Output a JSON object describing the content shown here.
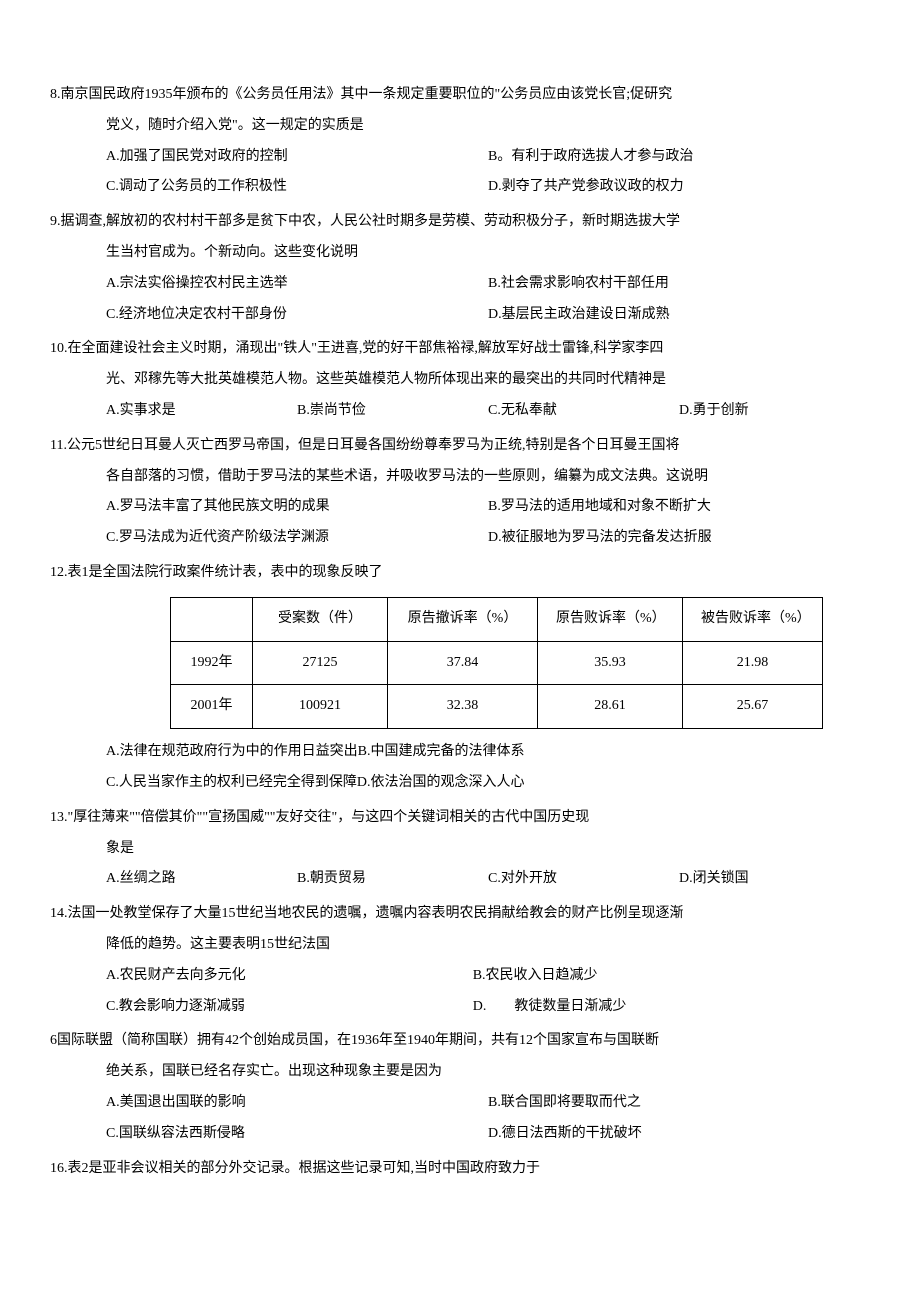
{
  "questions": [
    {
      "num": "8.",
      "text": "南京国民政府1935年颁布的《公务员任用法》其中一条规定重要职位的\"公务员应由该党长官;促研究",
      "continue": "党义，随时介绍入党\"。这一规定的实质是",
      "layout": "2col",
      "opts": {
        "A": "A.加强了国民党对政府的控制",
        "B": "B。有利于政府选拔人才参与政治",
        "C": "C.调动了公务员的工作积极性",
        "D": "D.剥夺了共产党参政议政的权力"
      }
    },
    {
      "num": "9.",
      "text": "据调查,解放初的农村村干部多是贫下中农，人民公社时期多是劳模、劳动积极分子，新时期选拔大学",
      "continue": "生当村官成为。个新动向。这些变化说明",
      "layout": "2col",
      "opts": {
        "A": "A.宗法实俗操控农村民主选举",
        "B": "B.社会需求影响农村干部任用",
        "C": "C.经济地位决定农村干部身份",
        "D": "D.基层民主政治建设日渐成熟"
      }
    },
    {
      "num": "10.",
      "text": "在全面建设社会主义时期，涌现出\"铁人\"王进喜,党的好干部焦裕禄,解放军好战士雷锋,科学家李四",
      "continue": "光、邓稼先等大批英雄模范人物。这些英雄模范人物所体现出来的最突出的共同时代精神是",
      "layout": "4col",
      "opts": {
        "A": "A.实事求是",
        "B": "B.崇尚节俭",
        "C": "C.无私奉献",
        "D": "D.勇于创新"
      }
    },
    {
      "num": "11.",
      "text": "公元5世纪日耳曼人灭亡西罗马帝国，但是日耳曼各国纷纷尊奉罗马为正统,特别是各个日耳曼王国将",
      "continue": "各自部落的习惯，借助于罗马法的某些术语，并吸收罗马法的一些原则，编纂为成文法典。这说明",
      "layout": "2col",
      "opts": {
        "A": "A.罗马法丰富了其他民族文明的成果",
        "B": "B.罗马法的适用地域和对象不断扩大",
        "C": "C.罗马法成为近代资产阶级法学渊源",
        "D": "D.被征服地为罗马法的完备发达折服"
      }
    },
    {
      "num": "12.",
      "text": "表1是全国法院行政案件统计表，表中的现象反映了",
      "table": {
        "headers": [
          "",
          "受案数（件）",
          "原告撤诉率（%）",
          "原告败诉率（%）",
          "被告败诉率（%）"
        ],
        "rows": [
          [
            "1992年",
            "27125",
            "37.84",
            "35.93",
            "21.98"
          ],
          [
            "2001年",
            "100921",
            "32.38",
            "28.61",
            "25.67"
          ]
        ]
      },
      "layout": "inline",
      "opts": {
        "AB": "A.法律在规范政府行为中的作用日益突出B.中国建成完备的法律体系",
        "CD": "C.人民当家作主的权利已经完全得到保障D.依法治国的观念深入人心"
      }
    },
    {
      "num": "13.",
      "text": "\"厚往薄来\"\"倍偿其价\"\"宣扬国威\"\"友好交往\"，与这四个关键词相关的古代中国历史现",
      "continue": "象是",
      "layout": "4col",
      "opts": {
        "A": "A.丝绸之路",
        "B": "B.朝贡贸易",
        "C": "C.对外开放",
        "D": "D.闭关锁国"
      }
    },
    {
      "num": "14.",
      "text": "法国一处教堂保存了大量15世纪当地农民的遗嘱，遗嘱内容表明农民捐献给教会的财产比例呈现逐渐",
      "continue": "降低的趋势。这主要表明15世纪法国",
      "layout": "special",
      "opts": {
        "A": "A.农民财产去向多元化",
        "B": "B.农民收入日趋减少",
        "C": "C.教会影响力逐渐减弱",
        "D": "D.　　教徒数量日渐减少"
      }
    },
    {
      "num": "6",
      "text": "国际联盟（简称国联）拥有42个创始成员国，在1936年至1940年期间，共有12个国家宣布与国联断",
      "continue": "绝关系，国联已经名存实亡。出现这种现象主要是因为",
      "layout": "2col",
      "opts": {
        "A": "A.美国退出国联的影响",
        "B": "B.联合国即将要取而代之",
        "C": "C.国联纵容法西斯侵略",
        "D": "D.德日法西斯的干扰破坏"
      }
    },
    {
      "num": "16.",
      "text": "表2是亚非会议相关的部分外交记录。根据这些记录可知,当时中国政府致力于"
    }
  ]
}
